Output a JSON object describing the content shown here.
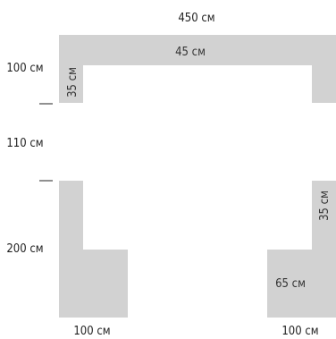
{
  "colors": {
    "block": "#d2d2d2",
    "text": "#222222",
    "background": "#ffffff"
  },
  "top_section": {
    "total_width": "450 см",
    "bar_height": "45 см",
    "left_height": "100 см",
    "inner_leg": "35 см"
  },
  "middle_gap": {
    "height": "110 см"
  },
  "bottom_section": {
    "height": "200 см",
    "right_leg_width": "35 см",
    "right_inner_width": "65 см",
    "left_base": "100 см",
    "right_base": "100 см"
  }
}
